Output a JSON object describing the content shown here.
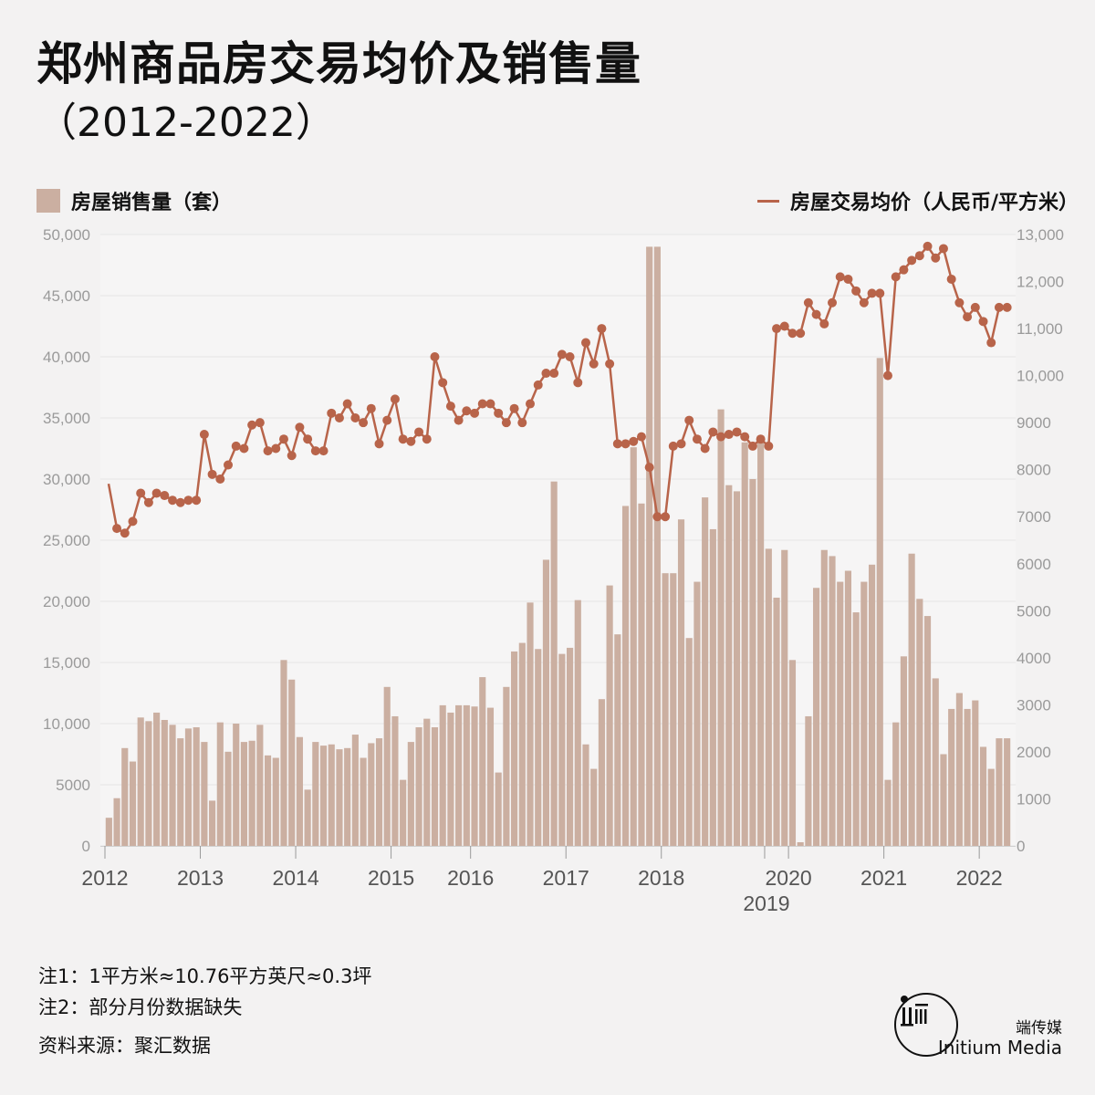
{
  "title": "郑州商品房交易均价及销售量",
  "subtitle": "（2012-2022）",
  "colors": {
    "bar": "#cbafa1",
    "line": "#b8644a",
    "grid": "#e6e5e5",
    "axis_text": "#9a9a9a",
    "year_text": "#555555"
  },
  "chart_data": {
    "type": "bar+line",
    "bar_series": {
      "name": "房屋销售量（套）",
      "ylim": [
        0,
        50000
      ],
      "ticks": [
        "0",
        "5000",
        "10,000",
        "15,000",
        "20,000",
        "25,000",
        "30,000",
        "35,000",
        "40,000",
        "45,000",
        "50,000"
      ],
      "values": [
        2300,
        3900,
        8000,
        6900,
        10500,
        10200,
        10900,
        10300,
        9900,
        8800,
        9600,
        9700,
        8500,
        3700,
        10100,
        7700,
        10000,
        8500,
        8600,
        9900,
        7400,
        7200,
        15200,
        13600,
        8900,
        4600,
        8500,
        8200,
        8300,
        7900,
        8000,
        9100,
        7200,
        8400,
        8800,
        13000,
        10600,
        5400,
        8500,
        9700,
        10400,
        9700,
        11500,
        10900,
        11500,
        11500,
        11400,
        13800,
        11300,
        6000,
        13000,
        15900,
        16600,
        19900,
        16100,
        23400,
        29800,
        15700,
        16200,
        20100,
        8300,
        6300,
        12000,
        21300,
        17300,
        27800,
        32600,
        28000,
        49000,
        49000,
        22300,
        22300,
        26700,
        17000,
        21600,
        28500,
        25900,
        35700,
        29500,
        29000,
        33000,
        30000,
        33000,
        24300,
        20300,
        24200,
        15200,
        300,
        10600,
        21100,
        24200,
        23700,
        21600,
        22500,
        19100,
        21600,
        23000,
        39900,
        5400,
        10100,
        15500,
        23900,
        20200,
        18800,
        13700,
        7500,
        11200,
        12500,
        11200,
        11900,
        8100,
        6300,
        8800,
        8800
      ]
    },
    "line_series": {
      "name": "房屋交易均价（人民币/平方米）",
      "ylim": [
        0,
        13000
      ],
      "ticks": [
        "0",
        "1000",
        "2000",
        "3000",
        "4000",
        "5000",
        "6000",
        "7000",
        "8000",
        "9000",
        "10,000",
        "11,000",
        "12,000",
        "13,000"
      ],
      "values": [
        null,
        6750,
        6650,
        6900,
        7500,
        7300,
        7500,
        7450,
        7350,
        7300,
        7350,
        7350,
        8750,
        7900,
        7800,
        8100,
        8500,
        8450,
        8950,
        9000,
        8400,
        8450,
        8650,
        8300,
        8900,
        8650,
        8400,
        8400,
        9200,
        9100,
        9400,
        9100,
        9000,
        9300,
        8550,
        9050,
        9500,
        8650,
        8600,
        8800,
        8650,
        10400,
        9850,
        9350,
        9050,
        9250,
        9200,
        9400,
        9400,
        9200,
        9000,
        9300,
        9000,
        9400,
        9800,
        10050,
        10050,
        10450,
        10400,
        9850,
        10700,
        10250,
        11000,
        10250,
        8550,
        8550,
        8600,
        8700,
        8050,
        7000,
        7000,
        8500,
        8550,
        9050,
        8650,
        8450,
        8800,
        8700,
        8750,
        8800,
        8700,
        8500,
        8650,
        8500,
        11000,
        11050,
        10900,
        10900,
        11550,
        11300,
        11100,
        11550,
        12100,
        12050,
        11800,
        11550,
        11750,
        11750,
        10000,
        12100,
        12250,
        12450,
        12550,
        12750,
        12500,
        12700,
        12050,
        11550,
        11250,
        11450,
        11150,
        10700,
        11450,
        11450
      ],
      "start_value": 7700
    },
    "x_labels": [
      {
        "label": "2012",
        "index": 0
      },
      {
        "label": "2013",
        "index": 12
      },
      {
        "label": "2014",
        "index": 24
      },
      {
        "label": "2015",
        "index": 36
      },
      {
        "label": "2016",
        "index": 46
      },
      {
        "label": "2017",
        "index": 58
      },
      {
        "label": "2018",
        "index": 70
      },
      {
        "label": "2019",
        "index": 83
      },
      {
        "label": "2020",
        "index": 86
      },
      {
        "label": "2021",
        "index": 98
      },
      {
        "label": "2022",
        "index": 110
      }
    ]
  },
  "notes": {
    "note1": "注1：1平方米≈10.76平方英尺≈0.3坪",
    "note2": "注2：部分月份数据缺失",
    "source": "资料来源：聚汇数据"
  },
  "brand": {
    "cn": "端传媒",
    "en": "Initium Media"
  }
}
